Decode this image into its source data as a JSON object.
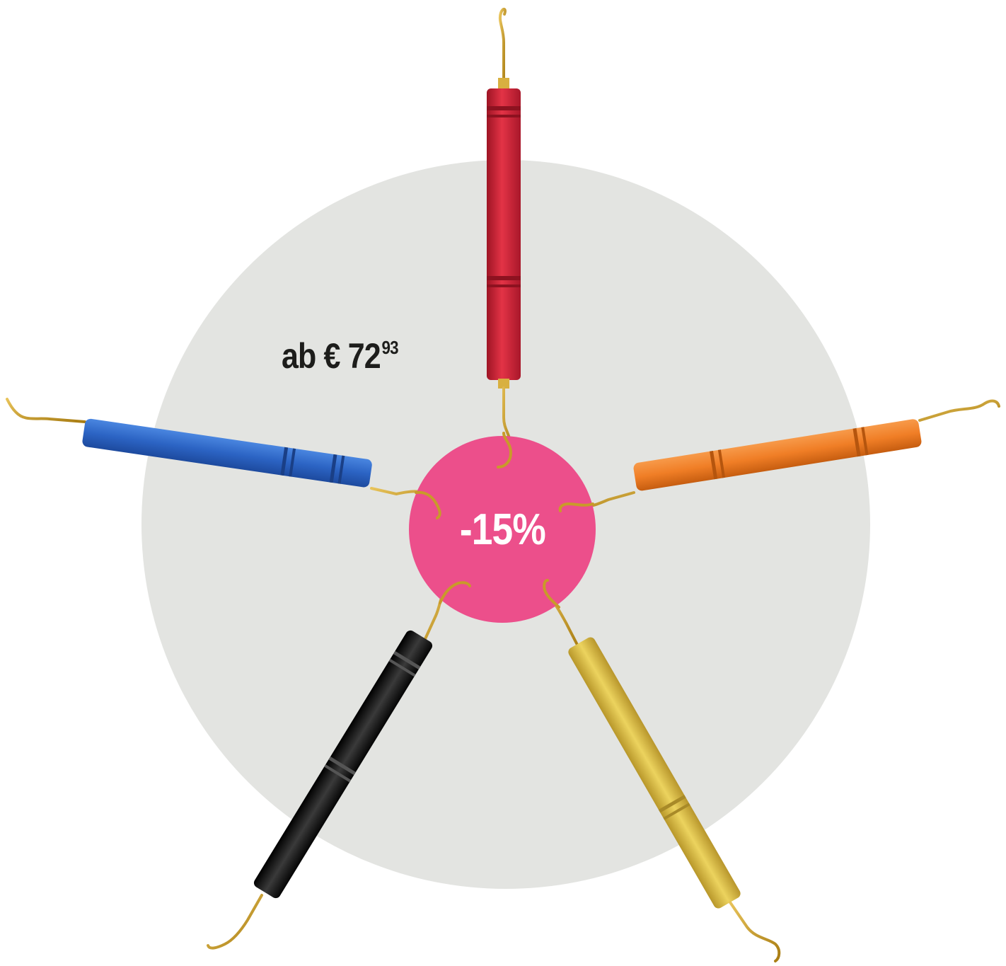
{
  "price": {
    "prefix": "ab € 72",
    "cents": "93"
  },
  "discount": {
    "label": "-15%"
  },
  "colors": {
    "background_disc": "#e3e4e1",
    "badge": "#ec4f8b",
    "gold": "#c9a227",
    "handles": [
      "#d62839",
      "#2f6fd1",
      "#f07e26",
      "#1a1a1a",
      "#e0c14a"
    ]
  },
  "instruments": [
    {
      "name": "red-instrument",
      "color": "red"
    },
    {
      "name": "blue-instrument",
      "color": "blue"
    },
    {
      "name": "orange-instrument",
      "color": "orange"
    },
    {
      "name": "black-instrument",
      "color": "black"
    },
    {
      "name": "yellow-instrument",
      "color": "yellow"
    }
  ]
}
